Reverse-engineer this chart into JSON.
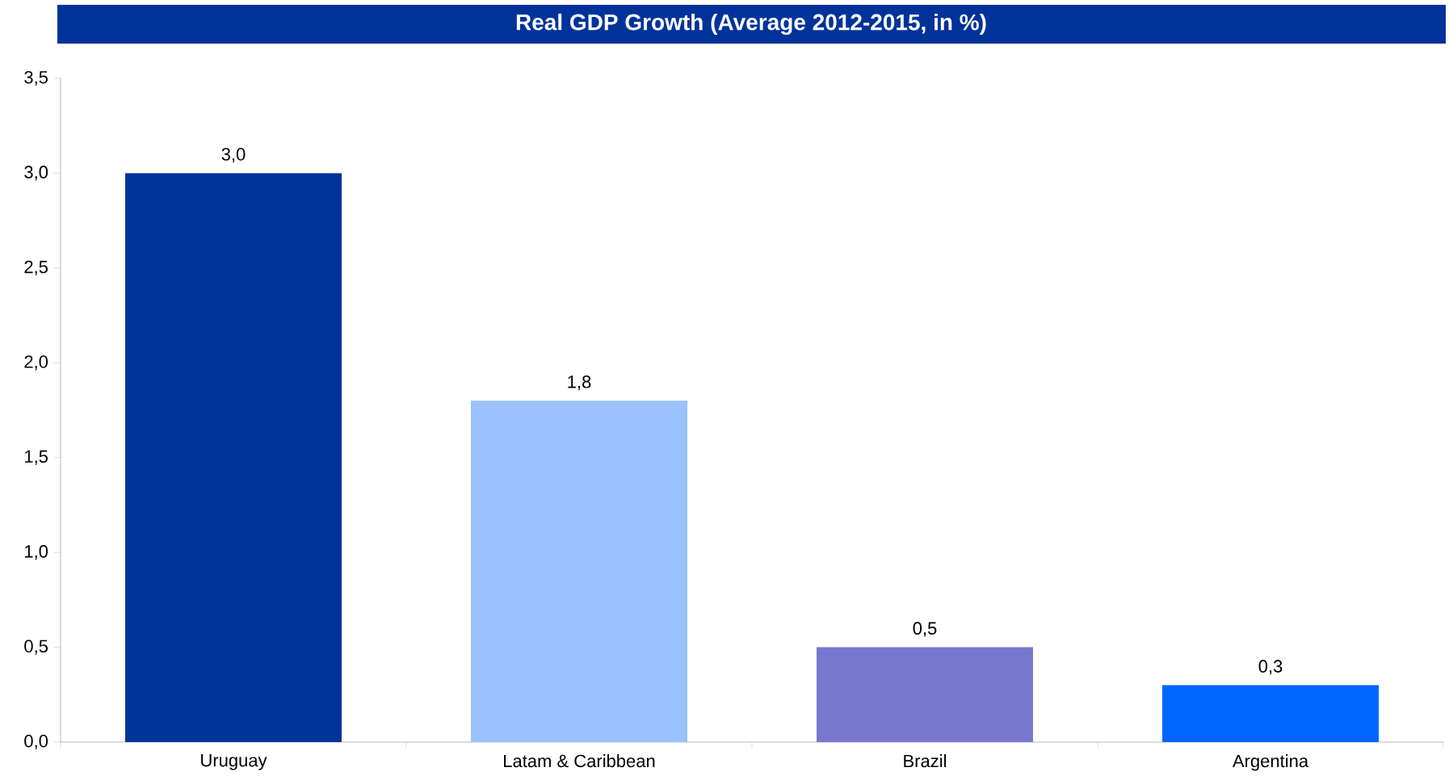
{
  "chart_data": {
    "type": "bar",
    "title": "Real GDP Growth (Average 2012-2015, in %)",
    "categories": [
      "Uruguay",
      "Latam & Caribbean",
      "Brazil",
      "Argentina"
    ],
    "values": [
      3.0,
      1.8,
      0.5,
      0.3
    ],
    "value_labels": [
      "3,0",
      "1,8",
      "0,5",
      "0,3"
    ],
    "colors": [
      "#003399",
      "#99c2ff",
      "#7777d0",
      "#0066ff"
    ],
    "ylim": [
      0,
      3.5
    ],
    "yticks": [
      {
        "value": 0,
        "label": "0,0"
      },
      {
        "value": 0.5,
        "label": "0,5"
      },
      {
        "value": 1,
        "label": "1,0"
      },
      {
        "value": 1.5,
        "label": "1,5"
      },
      {
        "value": 2,
        "label": "2,0"
      },
      {
        "value": 2.5,
        "label": "2,5"
      },
      {
        "value": 3,
        "label": "3,0"
      },
      {
        "value": 3.5,
        "label": "3,5"
      }
    ]
  }
}
